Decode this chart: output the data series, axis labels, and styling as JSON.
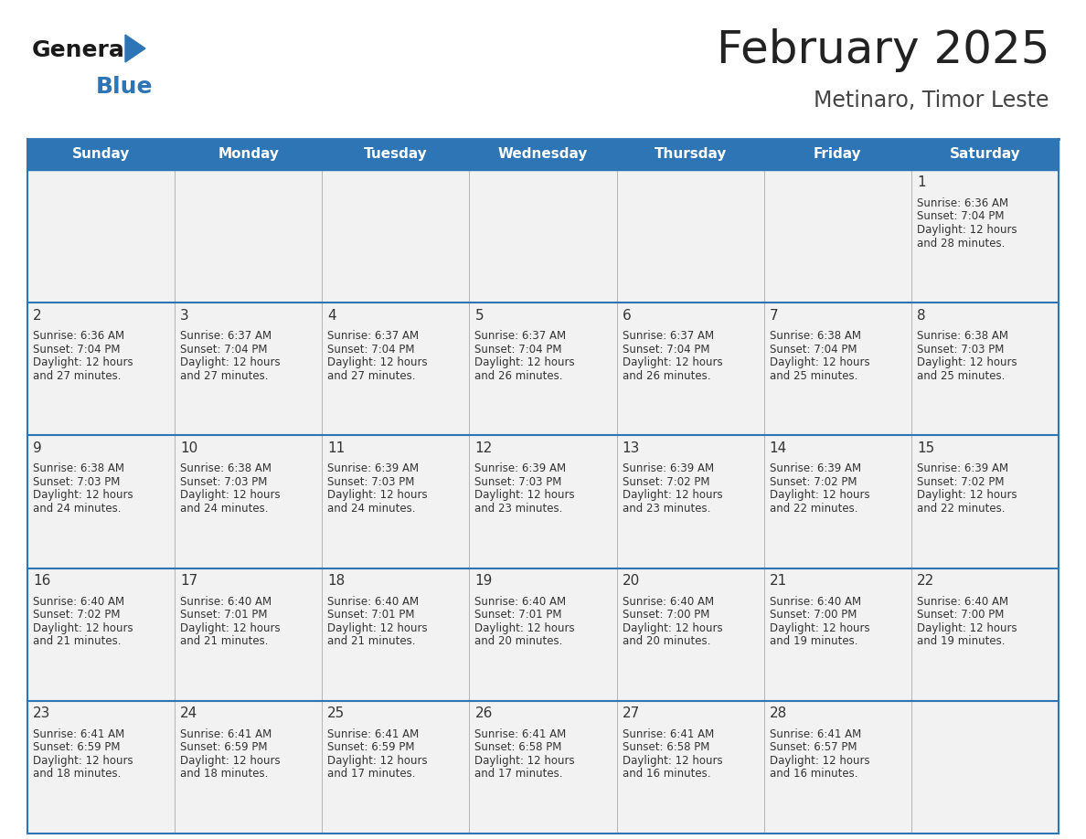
{
  "title": "February 2025",
  "subtitle": "Metinaro, Timor Leste",
  "header_bg": "#2E75B6",
  "header_text_color": "#FFFFFF",
  "cell_bg_light": "#F2F2F2",
  "border_color": "#2E75B6",
  "days_of_week": [
    "Sunday",
    "Monday",
    "Tuesday",
    "Wednesday",
    "Thursday",
    "Friday",
    "Saturday"
  ],
  "title_color": "#222222",
  "subtitle_color": "#444444",
  "day_num_color": "#333333",
  "cell_text_color": "#333333",
  "logo_general_color": "#1a1a1a",
  "logo_blue_color": "#2E75B6",
  "logo_triangle_color": "#2E75B6",
  "calendar": [
    [
      null,
      null,
      null,
      null,
      null,
      null,
      {
        "day": 1,
        "sunrise": "6:36 AM",
        "sunset": "7:04 PM",
        "daylight": "12 hours and 28 minutes."
      }
    ],
    [
      {
        "day": 2,
        "sunrise": "6:36 AM",
        "sunset": "7:04 PM",
        "daylight": "12 hours and 27 minutes."
      },
      {
        "day": 3,
        "sunrise": "6:37 AM",
        "sunset": "7:04 PM",
        "daylight": "12 hours and 27 minutes."
      },
      {
        "day": 4,
        "sunrise": "6:37 AM",
        "sunset": "7:04 PM",
        "daylight": "12 hours and 27 minutes."
      },
      {
        "day": 5,
        "sunrise": "6:37 AM",
        "sunset": "7:04 PM",
        "daylight": "12 hours and 26 minutes."
      },
      {
        "day": 6,
        "sunrise": "6:37 AM",
        "sunset": "7:04 PM",
        "daylight": "12 hours and 26 minutes."
      },
      {
        "day": 7,
        "sunrise": "6:38 AM",
        "sunset": "7:04 PM",
        "daylight": "12 hours and 25 minutes."
      },
      {
        "day": 8,
        "sunrise": "6:38 AM",
        "sunset": "7:03 PM",
        "daylight": "12 hours and 25 minutes."
      }
    ],
    [
      {
        "day": 9,
        "sunrise": "6:38 AM",
        "sunset": "7:03 PM",
        "daylight": "12 hours and 24 minutes."
      },
      {
        "day": 10,
        "sunrise": "6:38 AM",
        "sunset": "7:03 PM",
        "daylight": "12 hours and 24 minutes."
      },
      {
        "day": 11,
        "sunrise": "6:39 AM",
        "sunset": "7:03 PM",
        "daylight": "12 hours and 24 minutes."
      },
      {
        "day": 12,
        "sunrise": "6:39 AM",
        "sunset": "7:03 PM",
        "daylight": "12 hours and 23 minutes."
      },
      {
        "day": 13,
        "sunrise": "6:39 AM",
        "sunset": "7:02 PM",
        "daylight": "12 hours and 23 minutes."
      },
      {
        "day": 14,
        "sunrise": "6:39 AM",
        "sunset": "7:02 PM",
        "daylight": "12 hours and 22 minutes."
      },
      {
        "day": 15,
        "sunrise": "6:39 AM",
        "sunset": "7:02 PM",
        "daylight": "12 hours and 22 minutes."
      }
    ],
    [
      {
        "day": 16,
        "sunrise": "6:40 AM",
        "sunset": "7:02 PM",
        "daylight": "12 hours and 21 minutes."
      },
      {
        "day": 17,
        "sunrise": "6:40 AM",
        "sunset": "7:01 PM",
        "daylight": "12 hours and 21 minutes."
      },
      {
        "day": 18,
        "sunrise": "6:40 AM",
        "sunset": "7:01 PM",
        "daylight": "12 hours and 21 minutes."
      },
      {
        "day": 19,
        "sunrise": "6:40 AM",
        "sunset": "7:01 PM",
        "daylight": "12 hours and 20 minutes."
      },
      {
        "day": 20,
        "sunrise": "6:40 AM",
        "sunset": "7:00 PM",
        "daylight": "12 hours and 20 minutes."
      },
      {
        "day": 21,
        "sunrise": "6:40 AM",
        "sunset": "7:00 PM",
        "daylight": "12 hours and 19 minutes."
      },
      {
        "day": 22,
        "sunrise": "6:40 AM",
        "sunset": "7:00 PM",
        "daylight": "12 hours and 19 minutes."
      }
    ],
    [
      {
        "day": 23,
        "sunrise": "6:41 AM",
        "sunset": "6:59 PM",
        "daylight": "12 hours and 18 minutes."
      },
      {
        "day": 24,
        "sunrise": "6:41 AM",
        "sunset": "6:59 PM",
        "daylight": "12 hours and 18 minutes."
      },
      {
        "day": 25,
        "sunrise": "6:41 AM",
        "sunset": "6:59 PM",
        "daylight": "12 hours and 17 minutes."
      },
      {
        "day": 26,
        "sunrise": "6:41 AM",
        "sunset": "6:58 PM",
        "daylight": "12 hours and 17 minutes."
      },
      {
        "day": 27,
        "sunrise": "6:41 AM",
        "sunset": "6:58 PM",
        "daylight": "12 hours and 16 minutes."
      },
      {
        "day": 28,
        "sunrise": "6:41 AM",
        "sunset": "6:57 PM",
        "daylight": "12 hours and 16 minutes."
      },
      null
    ]
  ]
}
